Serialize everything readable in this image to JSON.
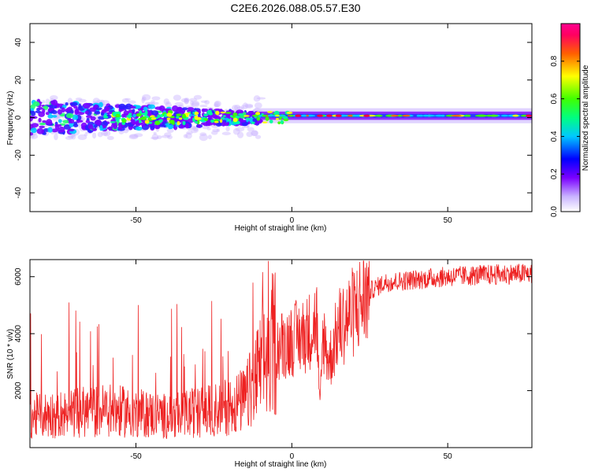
{
  "title": "C2E6.2026.088.05.57.E30",
  "chart_data": [
    {
      "type": "heatmap",
      "xlabel": "Height of straight line (km)",
      "ylabel": "Frequency (Hz)",
      "xlim": [
        -84,
        77
      ],
      "ylim": [
        -50,
        50
      ],
      "xticks": [
        -50,
        0,
        50
      ],
      "yticks": [
        -40,
        -20,
        0,
        20,
        40
      ],
      "colorbar": {
        "label": "Normalized spectral amplitude",
        "range": [
          0.0,
          1.0
        ],
        "ticks": [
          "0.0",
          "0.2",
          "0.4",
          "0.6",
          "0.8"
        ],
        "colormap": [
          "#ffffff",
          "#c9b4ff",
          "#7a00ff",
          "#0000ff",
          "#00c8ff",
          "#00ff80",
          "#40ff00",
          "#ffff00",
          "#ff6000",
          "#ff0060",
          "#ff0090"
        ]
      },
      "description_points": {
        "scatter_zone": {
          "x_range": [
            -84,
            -10
          ],
          "freq_spread_hz": [
            -10,
            10
          ]
        },
        "narrow_zone": {
          "x_range": [
            -10,
            77
          ],
          "freq_hz": 1
        }
      }
    },
    {
      "type": "line",
      "xlabel": "Height of straight line (km)",
      "ylabel": "SNR (10 * v/v)",
      "xlim": [
        -84,
        77
      ],
      "ylim": [
        0,
        6600
      ],
      "xticks": [
        -50,
        0,
        50
      ],
      "yticks": [
        2000,
        4000,
        6000
      ],
      "color": "#ee2222",
      "series_envelope": {
        "x": [
          -84,
          -60,
          -40,
          -25,
          -15,
          -5,
          0,
          5,
          8,
          9,
          10,
          12,
          15,
          20,
          25,
          30,
          40,
          50,
          60,
          70,
          77
        ],
        "y": [
          1000,
          1200,
          1000,
          1200,
          1500,
          3500,
          3800,
          4000,
          4500,
          1200,
          4000,
          3000,
          4200,
          4800,
          5500,
          5800,
          5900,
          6000,
          6050,
          6100,
          6100
        ]
      }
    }
  ]
}
